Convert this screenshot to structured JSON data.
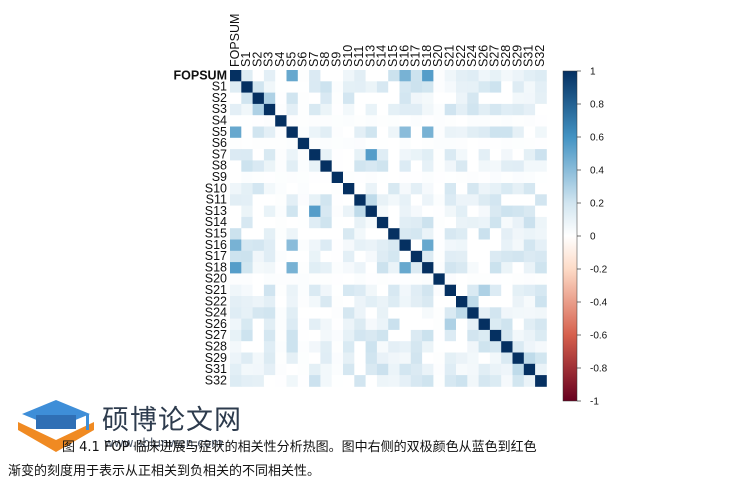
{
  "chart_data": {
    "type": "heatmap",
    "labels": [
      "FOPSUM",
      "S1",
      "S2",
      "S3",
      "S4",
      "S5",
      "S6",
      "S7",
      "S8",
      "S9",
      "S10",
      "S11",
      "S13",
      "S14",
      "S15",
      "S16",
      "S17",
      "S18",
      "S20",
      "S21",
      "S22",
      "S24",
      "S26",
      "S27",
      "S28",
      "S29",
      "S31",
      "S32"
    ],
    "color_scale": {
      "min": -1,
      "max": 1,
      "ticks": [
        "1",
        "0.8",
        "0.6",
        "0.4",
        "0.2",
        "0",
        "-0.2",
        "-0.4",
        "-0.6",
        "-0.8",
        "-1"
      ],
      "stops": [
        {
          "v": -1,
          "color": "#67001f"
        },
        {
          "v": -0.6,
          "color": "#d6604d"
        },
        {
          "v": -0.2,
          "color": "#fddbc7"
        },
        {
          "v": 0,
          "color": "#ffffff"
        },
        {
          "v": 0.2,
          "color": "#d1e5f0"
        },
        {
          "v": 0.6,
          "color": "#4393c3"
        },
        {
          "v": 1,
          "color": "#053061"
        }
      ]
    },
    "highlights": [
      {
        "a": "FOPSUM",
        "b": "S5",
        "value": 0.5
      },
      {
        "a": "FOPSUM",
        "b": "S16",
        "value": 0.45
      },
      {
        "a": "FOPSUM",
        "b": "S18",
        "value": 0.55
      },
      {
        "a": "S5",
        "b": "S16",
        "value": 0.4
      },
      {
        "a": "S5",
        "b": "S18",
        "value": 0.45
      },
      {
        "a": "S16",
        "b": "S18",
        "value": 0.5
      },
      {
        "a": "S7",
        "b": "S13",
        "value": 0.55
      },
      {
        "a": "S2",
        "b": "S3",
        "value": 0.3
      },
      {
        "a": "S21",
        "b": "S26",
        "value": 0.3
      },
      {
        "a": "S22",
        "b": "S24",
        "value": 0.25
      },
      {
        "a": "S29",
        "b": "S31",
        "value": 0.25
      },
      {
        "a": "S11",
        "b": "S13",
        "value": 0.25
      },
      {
        "a": "S1",
        "b": "S2",
        "value": 0.2
      },
      {
        "a": "S8",
        "b": "S11",
        "value": 0.2
      }
    ],
    "null_rows": [
      "S4",
      "S6",
      "S9",
      "S20"
    ]
  },
  "watermark": {
    "text": "硕博论文网",
    "url": "www.sblunwen.com"
  },
  "caption": {
    "line1": "图 4.1  FOP 临床进展与症状的相关性分析热图。图中右侧的双极颜色从蓝色到红色",
    "line2": "渐变的刻度用于表示从正相关到负相关的不同相关性。"
  },
  "colors": {
    "positive_strong": "#053061",
    "positive_mid": "#4393c3",
    "negative_strong": "#67001f"
  }
}
